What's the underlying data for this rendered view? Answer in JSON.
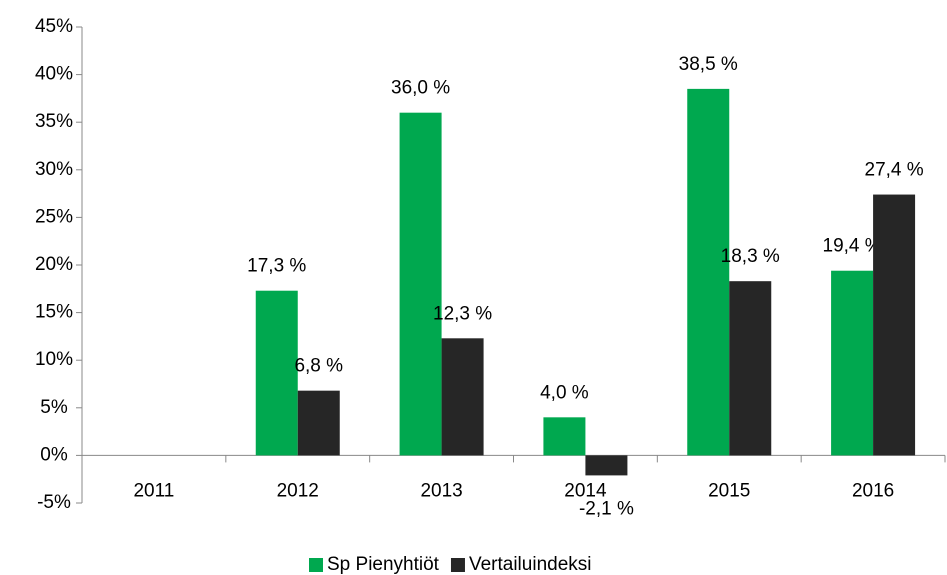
{
  "chart_data": {
    "type": "bar",
    "categories": [
      "2011",
      "2012",
      "2013",
      "2014",
      "2015",
      "2016"
    ],
    "series": [
      {
        "name": "Sp Pienyhtiöt",
        "color": "#00a84f",
        "values": [
          null,
          17.3,
          36.0,
          4.0,
          38.5,
          19.4
        ],
        "value_labels": [
          null,
          "17,3 %",
          "36,0 %",
          "4,0 %",
          "38,5 %",
          "19,4 %"
        ]
      },
      {
        "name": "Vertailuindeksi",
        "color": "#262626",
        "values": [
          null,
          6.8,
          12.3,
          -2.1,
          18.3,
          27.4
        ],
        "value_labels": [
          null,
          "6,8 %",
          "12,3 %",
          "-2,1 %",
          "18,3 %",
          "27,4 %"
        ]
      }
    ],
    "ylim": [
      -5,
      45
    ],
    "yticks": [
      {
        "value": -5,
        "label": "-5%"
      },
      {
        "value": 0,
        "label": "0%"
      },
      {
        "value": 5,
        "label": "5%"
      },
      {
        "value": 10,
        "label": "10%"
      },
      {
        "value": 15,
        "label": "15%"
      },
      {
        "value": 20,
        "label": "20%"
      },
      {
        "value": 25,
        "label": "25%"
      },
      {
        "value": 30,
        "label": "30%"
      },
      {
        "value": 35,
        "label": "35%"
      },
      {
        "value": 40,
        "label": "40%"
      },
      {
        "value": 45,
        "label": "45%"
      }
    ],
    "grid": false,
    "legend": "bottom"
  }
}
